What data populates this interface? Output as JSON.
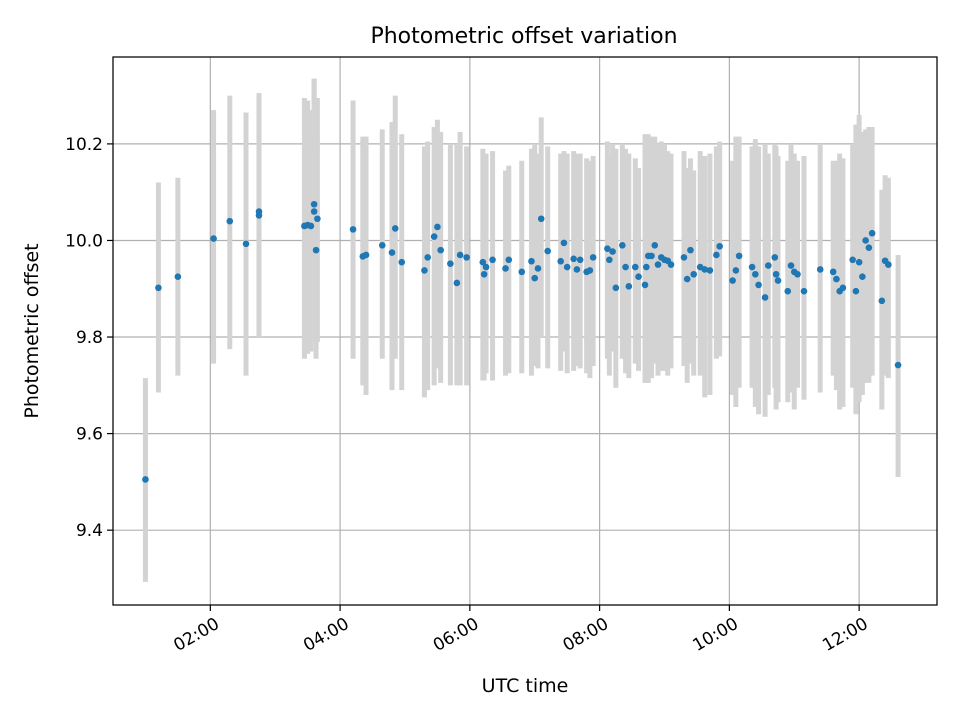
{
  "chart_data": {
    "type": "scatter",
    "title": "Photometric offset variation",
    "xlabel": "UTC time",
    "ylabel": "Photometric offset",
    "x_tick_labels": [
      "02:00",
      "04:00",
      "06:00",
      "08:00",
      "10:00",
      "12:00"
    ],
    "y_tick_labels": [
      "9.4",
      "9.6",
      "9.8",
      "10.0",
      "10.2"
    ],
    "x_ticks_hours": [
      2,
      4,
      6,
      8,
      10,
      12
    ],
    "y_ticks": [
      9.4,
      9.6,
      9.8,
      10.0,
      10.2
    ],
    "xlim_hours": [
      0.5,
      13.2
    ],
    "ylim": [
      9.245,
      10.38
    ],
    "grid": true,
    "colors": {
      "marker": "#1f77b4",
      "errorbar": "#d3d3d3",
      "grid": "#b0b0b0"
    },
    "series": [
      {
        "points": [
          [
            1.0,
            9.505,
            9.293,
            9.715
          ],
          [
            1.2,
            9.902,
            9.685,
            10.12
          ],
          [
            1.5,
            9.925,
            9.72,
            10.13
          ],
          [
            2.05,
            10.004,
            9.745,
            10.27
          ],
          [
            2.3,
            10.04,
            9.775,
            10.3
          ],
          [
            2.55,
            9.993,
            9.72,
            10.265
          ],
          [
            2.75,
            10.06,
            9.8,
            10.305
          ],
          [
            2.75,
            10.052,
            9.8,
            10.305
          ],
          [
            3.45,
            10.03,
            9.755,
            10.295
          ],
          [
            3.5,
            10.032,
            9.765,
            10.29
          ],
          [
            3.55,
            10.03,
            9.77,
            10.27
          ],
          [
            3.6,
            10.075,
            9.79,
            10.335
          ],
          [
            3.6,
            10.06,
            9.79,
            10.335
          ],
          [
            3.63,
            9.98,
            9.755,
            10.27
          ],
          [
            3.65,
            10.045,
            9.79,
            10.295
          ],
          [
            4.2,
            10.023,
            9.755,
            10.29
          ],
          [
            4.35,
            9.967,
            9.7,
            10.215
          ],
          [
            4.4,
            9.97,
            9.68,
            10.215
          ],
          [
            4.65,
            9.99,
            9.755,
            10.23
          ],
          [
            4.8,
            9.975,
            9.69,
            10.245
          ],
          [
            4.85,
            10.025,
            9.755,
            10.3
          ],
          [
            4.95,
            9.955,
            9.69,
            10.22
          ],
          [
            5.3,
            9.938,
            9.675,
            10.195
          ],
          [
            5.35,
            9.965,
            9.69,
            10.205
          ],
          [
            5.45,
            10.008,
            9.7,
            10.235
          ],
          [
            5.5,
            10.028,
            9.735,
            10.25
          ],
          [
            5.55,
            9.98,
            9.705,
            10.225
          ],
          [
            5.7,
            9.952,
            9.7,
            10.2
          ],
          [
            5.8,
            9.912,
            9.7,
            10.2
          ],
          [
            5.85,
            9.97,
            9.7,
            10.225
          ],
          [
            5.95,
            9.965,
            9.7,
            10.195
          ],
          [
            6.2,
            9.955,
            9.71,
            10.19
          ],
          [
            6.22,
            9.93,
            9.71,
            10.175
          ],
          [
            6.25,
            9.945,
            9.725,
            10.18
          ],
          [
            6.35,
            9.96,
            9.71,
            10.185
          ],
          [
            6.55,
            9.942,
            9.72,
            10.145
          ],
          [
            6.6,
            9.96,
            9.725,
            10.155
          ],
          [
            6.8,
            9.935,
            9.725,
            10.165
          ],
          [
            6.95,
            9.957,
            9.72,
            10.19
          ],
          [
            7.0,
            9.922,
            9.74,
            10.2
          ],
          [
            7.05,
            9.942,
            9.735,
            10.18
          ],
          [
            7.1,
            10.045,
            9.8,
            10.255
          ],
          [
            7.2,
            9.978,
            9.735,
            10.195
          ],
          [
            7.4,
            9.957,
            9.73,
            10.18
          ],
          [
            7.45,
            9.995,
            9.77,
            10.185
          ],
          [
            7.5,
            9.945,
            9.725,
            10.18
          ],
          [
            7.6,
            9.962,
            9.73,
            10.185
          ],
          [
            7.65,
            9.94,
            9.74,
            10.18
          ],
          [
            7.7,
            9.96,
            9.735,
            10.18
          ],
          [
            7.8,
            9.935,
            9.725,
            10.17
          ],
          [
            7.85,
            9.938,
            9.715,
            10.165
          ],
          [
            7.9,
            9.965,
            9.74,
            10.175
          ],
          [
            8.12,
            9.983,
            9.755,
            10.205
          ],
          [
            8.15,
            9.96,
            9.72,
            10.18
          ],
          [
            8.2,
            9.977,
            9.77,
            10.2
          ],
          [
            8.25,
            9.902,
            9.695,
            10.19
          ],
          [
            8.35,
            9.99,
            9.755,
            10.2
          ],
          [
            8.4,
            9.945,
            9.725,
            10.19
          ],
          [
            8.45,
            9.905,
            9.715,
            10.18
          ],
          [
            8.55,
            9.945,
            9.745,
            10.17
          ],
          [
            8.6,
            9.925,
            9.73,
            10.15
          ],
          [
            8.7,
            9.908,
            9.705,
            10.22
          ],
          [
            8.72,
            9.945,
            9.705,
            10.22
          ],
          [
            8.75,
            9.968,
            9.705,
            10.22
          ],
          [
            8.8,
            9.968,
            9.715,
            10.215
          ],
          [
            8.85,
            9.99,
            9.745,
            10.215
          ],
          [
            8.9,
            9.95,
            9.72,
            10.2
          ],
          [
            8.95,
            9.965,
            9.73,
            10.205
          ],
          [
            9.0,
            9.96,
            9.73,
            10.2
          ],
          [
            9.05,
            9.958,
            9.72,
            10.185
          ],
          [
            9.1,
            9.95,
            9.735,
            10.18
          ],
          [
            9.3,
            9.965,
            9.74,
            10.185
          ],
          [
            9.35,
            9.92,
            9.705,
            10.15
          ],
          [
            9.4,
            9.98,
            9.745,
            10.17
          ],
          [
            9.45,
            9.93,
            9.72,
            10.145
          ],
          [
            9.55,
            9.945,
            9.72,
            10.185
          ],
          [
            9.62,
            9.94,
            9.675,
            10.175
          ],
          [
            9.7,
            9.938,
            9.68,
            10.18
          ],
          [
            9.8,
            9.97,
            9.755,
            10.195
          ],
          [
            9.85,
            9.988,
            9.76,
            10.205
          ],
          [
            10.05,
            9.917,
            9.68,
            10.165
          ],
          [
            10.1,
            9.938,
            9.655,
            10.215
          ],
          [
            10.15,
            9.968,
            9.695,
            10.215
          ],
          [
            10.35,
            9.945,
            9.695,
            10.195
          ],
          [
            10.4,
            9.93,
            9.655,
            10.21
          ],
          [
            10.45,
            9.908,
            9.64,
            10.195
          ],
          [
            10.55,
            9.882,
            9.635,
            10.2
          ],
          [
            10.6,
            9.948,
            9.68,
            10.18
          ],
          [
            10.7,
            9.965,
            9.695,
            10.2
          ],
          [
            10.72,
            9.93,
            9.65,
            10.195
          ],
          [
            10.75,
            9.917,
            9.665,
            10.175
          ],
          [
            10.9,
            9.895,
            9.665,
            10.165
          ],
          [
            10.95,
            9.948,
            9.685,
            10.2
          ],
          [
            11.0,
            9.935,
            9.65,
            10.18
          ],
          [
            11.05,
            9.93,
            9.695,
            10.165
          ],
          [
            11.15,
            9.895,
            9.67,
            10.175
          ],
          [
            11.4,
            9.94,
            9.685,
            10.2
          ],
          [
            11.6,
            9.935,
            9.72,
            10.165
          ],
          [
            11.65,
            9.92,
            9.69,
            10.165
          ],
          [
            11.7,
            9.895,
            9.65,
            10.18
          ],
          [
            11.75,
            9.902,
            9.655,
            10.17
          ],
          [
            11.9,
            9.96,
            9.695,
            10.2
          ],
          [
            11.95,
            9.895,
            9.64,
            10.24
          ],
          [
            12.0,
            9.955,
            9.665,
            10.26
          ],
          [
            12.05,
            9.925,
            9.68,
            10.225
          ],
          [
            12.1,
            10.0,
            9.705,
            10.23
          ],
          [
            12.15,
            9.985,
            9.705,
            10.235
          ],
          [
            12.2,
            10.015,
            9.72,
            10.235
          ],
          [
            12.35,
            9.875,
            9.65,
            10.105
          ],
          [
            12.4,
            9.958,
            9.72,
            10.135
          ],
          [
            12.45,
            9.95,
            9.715,
            10.13
          ],
          [
            12.6,
            9.742,
            9.51,
            9.97
          ]
        ]
      }
    ]
  }
}
